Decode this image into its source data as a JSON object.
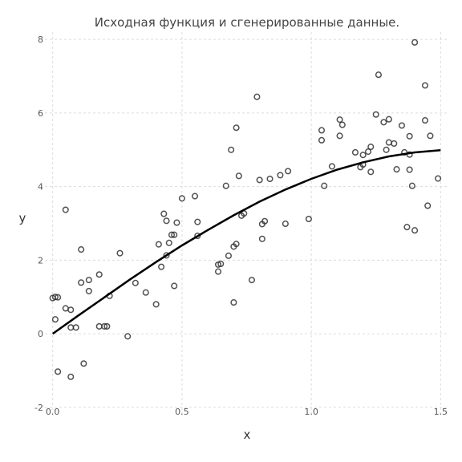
{
  "chart_data": {
    "type": "scatter",
    "title": "Исходная функция и сгенерированные данные.",
    "xlabel": "x",
    "ylabel": "y",
    "xlim": [
      -0.03,
      1.53
    ],
    "ylim": [
      -2.2,
      8.2
    ],
    "xticks": [
      0.0,
      0.5,
      1.0,
      1.5
    ],
    "xtick_labels": [
      "0.0",
      "0.5",
      "1.0",
      "1.5"
    ],
    "yticks": [
      -2,
      0,
      2,
      4,
      6,
      8
    ],
    "ytick_labels": [
      "-2",
      "0",
      "2",
      "4",
      "6",
      "8"
    ],
    "grid": true,
    "colors": {
      "points": "#333333",
      "curve": "#000000",
      "grid": "#dcdcdc"
    },
    "series": [
      {
        "kind": "scatter",
        "x": [
          0.0,
          0.01,
          0.01,
          0.02,
          0.02,
          0.05,
          0.05,
          0.07,
          0.07,
          0.09,
          0.07,
          0.11,
          0.11,
          0.12,
          0.14,
          0.14,
          0.18,
          0.18,
          0.2,
          0.21,
          0.22,
          0.26,
          0.29,
          0.32,
          0.36,
          0.4,
          0.41,
          0.42,
          0.43,
          0.44,
          0.44,
          0.45,
          0.46,
          0.47,
          0.47,
          0.48,
          0.5,
          0.55,
          0.56,
          0.56,
          0.64,
          0.64,
          0.65,
          0.67,
          0.68,
          0.69,
          0.7,
          0.7,
          0.71,
          0.71,
          0.72,
          0.73,
          0.74,
          0.77,
          0.79,
          0.8,
          0.81,
          0.81,
          0.82,
          0.84,
          0.88,
          0.9,
          0.91,
          0.99,
          1.04,
          1.04,
          1.05,
          1.08,
          1.11,
          1.11,
          1.12,
          1.17,
          1.19,
          1.2,
          1.2,
          1.22,
          1.23,
          1.23,
          1.25,
          1.26,
          1.28,
          1.29,
          1.3,
          1.3,
          1.32,
          1.33,
          1.35,
          1.36,
          1.37,
          1.38,
          1.38,
          1.38,
          1.39,
          1.4,
          1.4,
          1.44,
          1.44,
          1.45,
          1.46,
          1.49
        ],
        "y": [
          0.97,
          0.39,
          1.0,
          0.99,
          -1.03,
          0.69,
          3.37,
          -1.17,
          0.65,
          0.17,
          0.17,
          1.39,
          2.29,
          -0.81,
          1.46,
          1.16,
          1.61,
          0.2,
          0.2,
          0.2,
          1.03,
          2.19,
          -0.07,
          1.38,
          1.12,
          0.8,
          2.43,
          1.82,
          3.26,
          3.07,
          2.13,
          2.47,
          2.69,
          1.3,
          2.69,
          3.02,
          3.68,
          3.74,
          2.66,
          3.04,
          1.69,
          1.88,
          1.9,
          4.02,
          2.12,
          5.0,
          0.85,
          2.37,
          5.6,
          2.44,
          4.29,
          3.21,
          3.27,
          1.46,
          6.44,
          4.18,
          2.58,
          2.98,
          3.06,
          4.21,
          4.31,
          2.99,
          4.42,
          3.12,
          5.26,
          5.53,
          4.02,
          4.55,
          5.38,
          5.82,
          5.68,
          4.93,
          4.53,
          4.6,
          4.86,
          4.95,
          5.08,
          4.4,
          5.96,
          7.04,
          5.75,
          5.0,
          5.2,
          5.83,
          5.17,
          4.47,
          5.66,
          4.93,
          2.9,
          5.37,
          4.87,
          4.46,
          4.02,
          2.81,
          7.92,
          5.8,
          6.75,
          3.48,
          5.38,
          4.22
        ]
      },
      {
        "kind": "line",
        "function": "5*sin(x)",
        "x": [
          0.0,
          0.1,
          0.2,
          0.3,
          0.4,
          0.5,
          0.6,
          0.7,
          0.8,
          0.9,
          1.0,
          1.1,
          1.2,
          1.3,
          1.4,
          1.5
        ],
        "y": [
          0.0,
          0.5,
          0.99,
          1.48,
          1.95,
          2.4,
          2.82,
          3.22,
          3.59,
          3.92,
          4.21,
          4.46,
          4.66,
          4.82,
          4.93,
          4.99
        ]
      }
    ]
  }
}
